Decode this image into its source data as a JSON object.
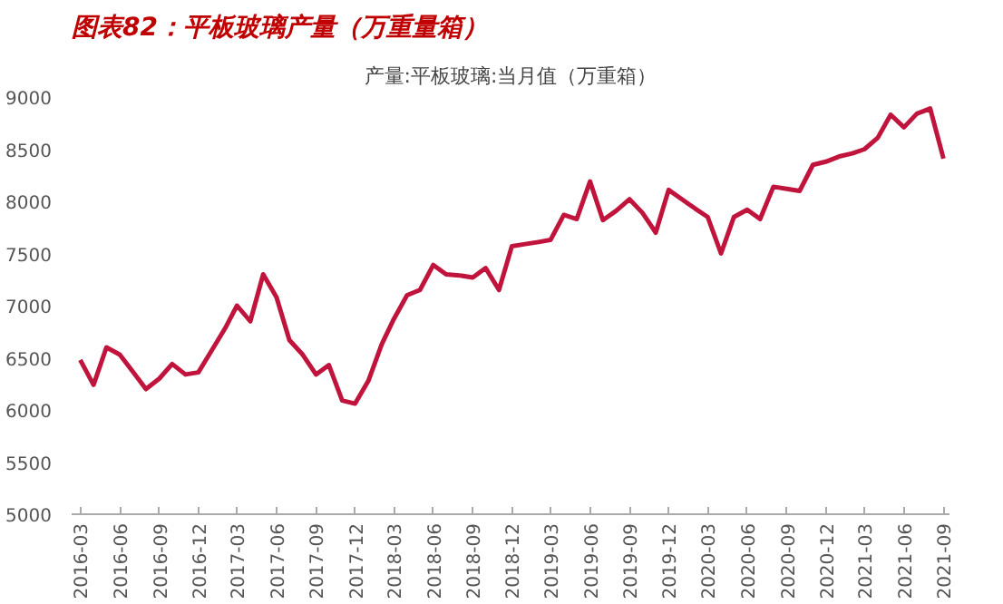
{
  "chart_data": {
    "type": "line",
    "title": "图表82：平板玻璃产量（万重量箱）",
    "subtitle": "产量:平板玻璃:当月值（万重箱）",
    "x": [
      "2016-03",
      "2016-04",
      "2016-05",
      "2016-06",
      "2016-07",
      "2016-08",
      "2016-09",
      "2016-10",
      "2016-11",
      "2016-12",
      "2017-01",
      "2017-02",
      "2017-03",
      "2017-04",
      "2017-05",
      "2017-06",
      "2017-07",
      "2017-08",
      "2017-09",
      "2017-10",
      "2017-11",
      "2017-12",
      "2018-01",
      "2018-02",
      "2018-03",
      "2018-04",
      "2018-05",
      "2018-06",
      "2018-07",
      "2018-08",
      "2018-09",
      "2018-10",
      "2018-11",
      "2018-12",
      "2019-01",
      "2019-02",
      "2019-03",
      "2019-04",
      "2019-05",
      "2019-06",
      "2019-07",
      "2019-08",
      "2019-09",
      "2019-10",
      "2019-11",
      "2019-12",
      "2020-01",
      "2020-02",
      "2020-03",
      "2020-04",
      "2020-05",
      "2020-06",
      "2020-07",
      "2020-08",
      "2020-09",
      "2020-10",
      "2020-11",
      "2020-12",
      "2021-01",
      "2021-02",
      "2021-03",
      "2021-04",
      "2021-05",
      "2021-06",
      "2021-07",
      "2021-08",
      "2021-09"
    ],
    "series": [
      {
        "color": "#c0143c",
        "values": [
          6480,
          6240,
          6600,
          6530,
          6370,
          6200,
          6300,
          6440,
          6340,
          6360,
          6570,
          6780,
          7000,
          6850,
          7300,
          7080,
          6670,
          6530,
          6340,
          6430,
          6090,
          6060,
          6280,
          6630,
          6870,
          7100,
          7150,
          7390,
          7300,
          7290,
          7270,
          7360,
          7150,
          7570,
          7590,
          7610,
          7630,
          7870,
          7830,
          8190,
          7820,
          7910,
          8020,
          7890,
          7700,
          8110,
          8020,
          7930,
          7850,
          7500,
          7850,
          7920,
          7830,
          8140,
          8120,
          8100,
          8350,
          8380,
          8430,
          8460,
          8500,
          8610,
          8830,
          8710,
          8840,
          8890,
          8410
        ]
      }
    ],
    "xlim": [
      "2016-02-10",
      "2021-09-15"
    ],
    "xticks": [
      {
        "value": "2016-03",
        "label": "2016-03"
      },
      {
        "value": "2016-06",
        "label": "2016-06"
      },
      {
        "value": "2016-09",
        "label": "2016-09"
      },
      {
        "value": "2016-12",
        "label": "2016-12"
      },
      {
        "value": "2017-03",
        "label": "2017-03"
      },
      {
        "value": "2017-06",
        "label": "2017-06"
      },
      {
        "value": "2017-09",
        "label": "2017-09"
      },
      {
        "value": "2017-12",
        "label": "2017-12"
      },
      {
        "value": "2018-03",
        "label": "2018-03"
      },
      {
        "value": "2018-06",
        "label": "2018-06"
      },
      {
        "value": "2018-09",
        "label": "2018-09"
      },
      {
        "value": "2018-12",
        "label": "2018-12"
      },
      {
        "value": "2019-03",
        "label": "2019-03"
      },
      {
        "value": "2019-06",
        "label": "2019-06"
      },
      {
        "value": "2019-09",
        "label": "2019-09"
      },
      {
        "value": "2019-12",
        "label": "2019-12"
      },
      {
        "value": "2020-03",
        "label": "2020-03"
      },
      {
        "value": "2020-06",
        "label": "2020-06"
      },
      {
        "value": "2020-09",
        "label": "2020-09"
      },
      {
        "value": "2020-12",
        "label": "2020-12"
      },
      {
        "value": "2021-03",
        "label": "2021-03"
      },
      {
        "value": "2021-06",
        "label": "2021-06"
      },
      {
        "value": "2021-09",
        "label": "2021-09"
      }
    ],
    "ylim": [
      5000,
      9000
    ],
    "yticks": [
      5000,
      5500,
      6000,
      6500,
      7000,
      7500,
      8000,
      8500,
      9000
    ],
    "grid": false,
    "marker": "none",
    "line_style": "solid"
  }
}
